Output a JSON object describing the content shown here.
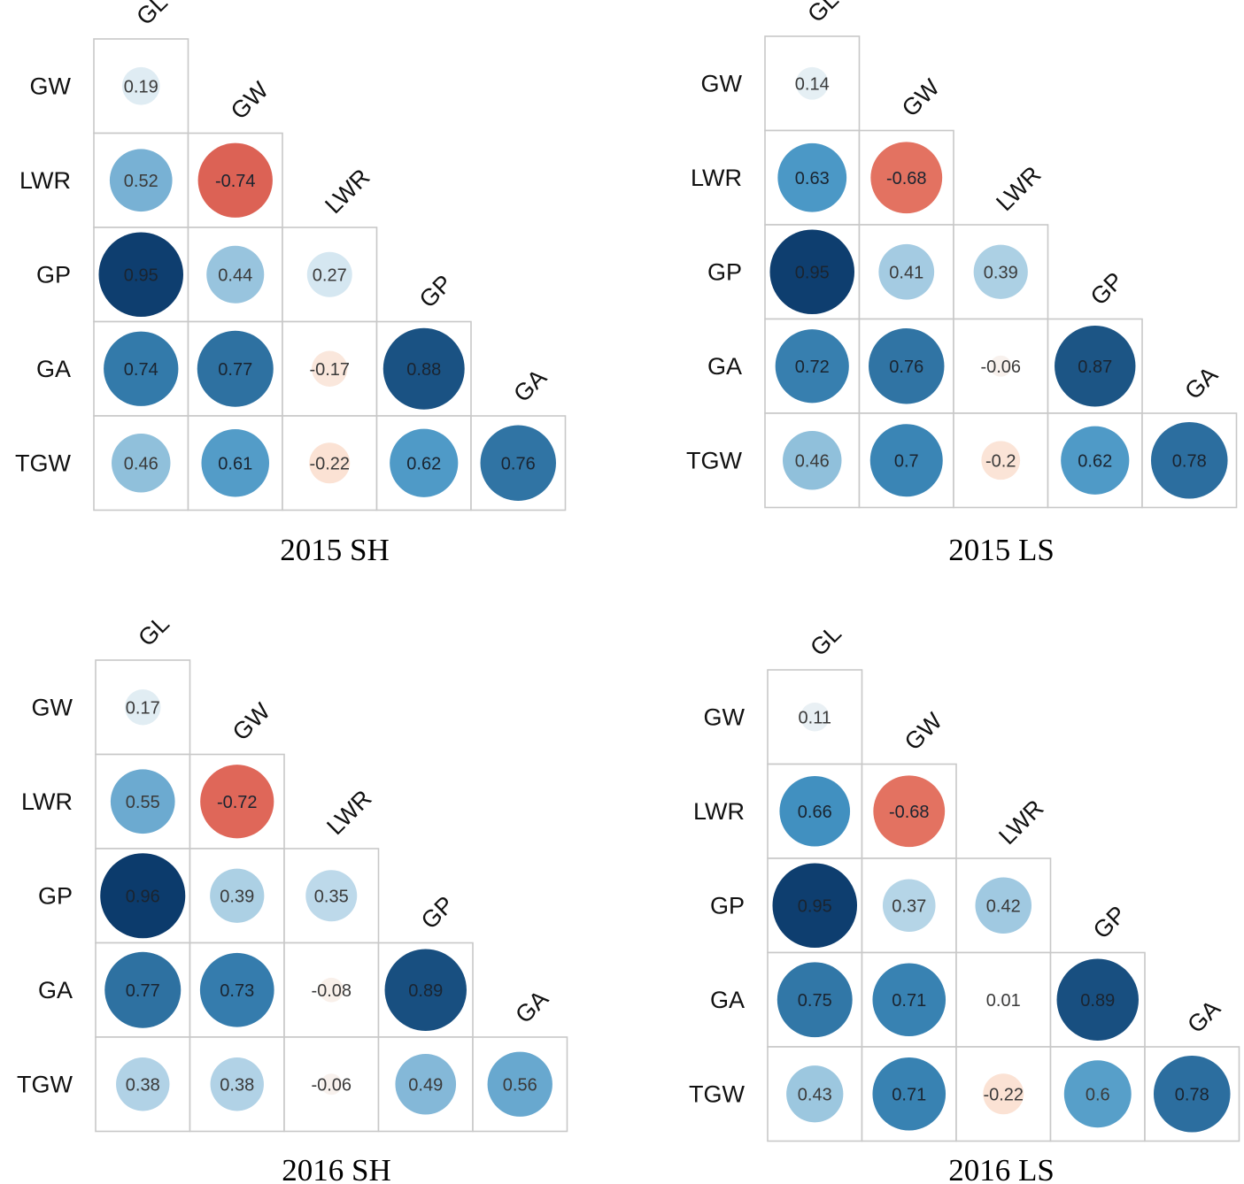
{
  "chart_data": [
    {
      "type": "correlation-matrix",
      "title": "2015 SH",
      "row_labels": [
        "GW",
        "LWR",
        "GP",
        "GA",
        "TGW"
      ],
      "col_labels": [
        "GL",
        "GW",
        "LWR",
        "GP",
        "GA"
      ],
      "values": [
        [
          0.19
        ],
        [
          0.52,
          -0.74
        ],
        [
          0.95,
          0.44,
          0.27
        ],
        [
          0.74,
          0.77,
          -0.17,
          0.88
        ],
        [
          0.46,
          0.61,
          -0.22,
          0.62,
          0.76
        ]
      ],
      "value_labels": [
        [
          "0.19"
        ],
        [
          "0.52",
          "-0.74"
        ],
        [
          "0.95",
          "0.44",
          "0.27"
        ],
        [
          "0.74",
          "0.77",
          "-0.17",
          "0.88"
        ],
        [
          "0.46",
          "0.61",
          "-0.22",
          "0.62",
          "0.76"
        ]
      ],
      "color_range": [
        -1,
        1
      ]
    },
    {
      "type": "correlation-matrix",
      "title": "2015 LS",
      "row_labels": [
        "GW",
        "LWR",
        "GP",
        "GA",
        "TGW"
      ],
      "col_labels": [
        "GL",
        "GW",
        "LWR",
        "GP",
        "GA"
      ],
      "values": [
        [
          0.14
        ],
        [
          0.63,
          -0.68
        ],
        [
          0.95,
          0.41,
          0.39
        ],
        [
          0.72,
          0.76,
          -0.06,
          0.87
        ],
        [
          0.46,
          0.7,
          -0.2,
          0.62,
          0.78
        ]
      ],
      "value_labels": [
        [
          "0.14"
        ],
        [
          "0.63",
          "-0.68"
        ],
        [
          "0.95",
          "0.41",
          "0.39"
        ],
        [
          "0.72",
          "0.76",
          "-0.06",
          "0.87"
        ],
        [
          "0.46",
          "0.7",
          "-0.2",
          "0.62",
          "0.78"
        ]
      ],
      "color_range": [
        -1,
        1
      ]
    },
    {
      "type": "correlation-matrix",
      "title": "2016 SH",
      "row_labels": [
        "GW",
        "LWR",
        "GP",
        "GA",
        "TGW"
      ],
      "col_labels": [
        "GL",
        "GW",
        "LWR",
        "GP",
        "GA"
      ],
      "values": [
        [
          0.17
        ],
        [
          0.55,
          -0.72
        ],
        [
          0.96,
          0.39,
          0.35
        ],
        [
          0.77,
          0.73,
          -0.08,
          0.89
        ],
        [
          0.38,
          0.38,
          -0.06,
          0.49,
          0.56
        ]
      ],
      "value_labels": [
        [
          "0.17"
        ],
        [
          "0.55",
          "-0.72"
        ],
        [
          "0.96",
          "0.39",
          "0.35"
        ],
        [
          "0.77",
          "0.73",
          "-0.08",
          "0.89"
        ],
        [
          "0.38",
          "0.38",
          "-0.06",
          "0.49",
          "0.56"
        ]
      ],
      "color_range": [
        -1,
        1
      ]
    },
    {
      "type": "correlation-matrix",
      "title": "2016 LS",
      "row_labels": [
        "GW",
        "LWR",
        "GP",
        "GA",
        "TGW"
      ],
      "col_labels": [
        "GL",
        "GW",
        "LWR",
        "GP",
        "GA"
      ],
      "values": [
        [
          0.11
        ],
        [
          0.66,
          -0.68
        ],
        [
          0.95,
          0.37,
          0.42
        ],
        [
          0.75,
          0.71,
          0.01,
          0.89
        ],
        [
          0.43,
          0.71,
          -0.22,
          0.6,
          0.78
        ]
      ],
      "value_labels": [
        [
          "0.11"
        ],
        [
          "0.66",
          "-0.68"
        ],
        [
          "0.95",
          "0.37",
          "0.42"
        ],
        [
          "0.75",
          "0.71",
          "0.01",
          "0.89"
        ],
        [
          "0.43",
          "0.71",
          "-0.22",
          "0.6",
          "0.78"
        ]
      ],
      "color_range": [
        -1,
        1
      ]
    }
  ],
  "colors": {
    "negative_strong": "#b2182b",
    "negative_light": "#fddbc7",
    "neutral": "#f7f7f7",
    "positive_light": "#d1e5f0",
    "positive_mid": "#4393c3",
    "positive_strong": "#053061",
    "grid": "#c8c8c8"
  }
}
